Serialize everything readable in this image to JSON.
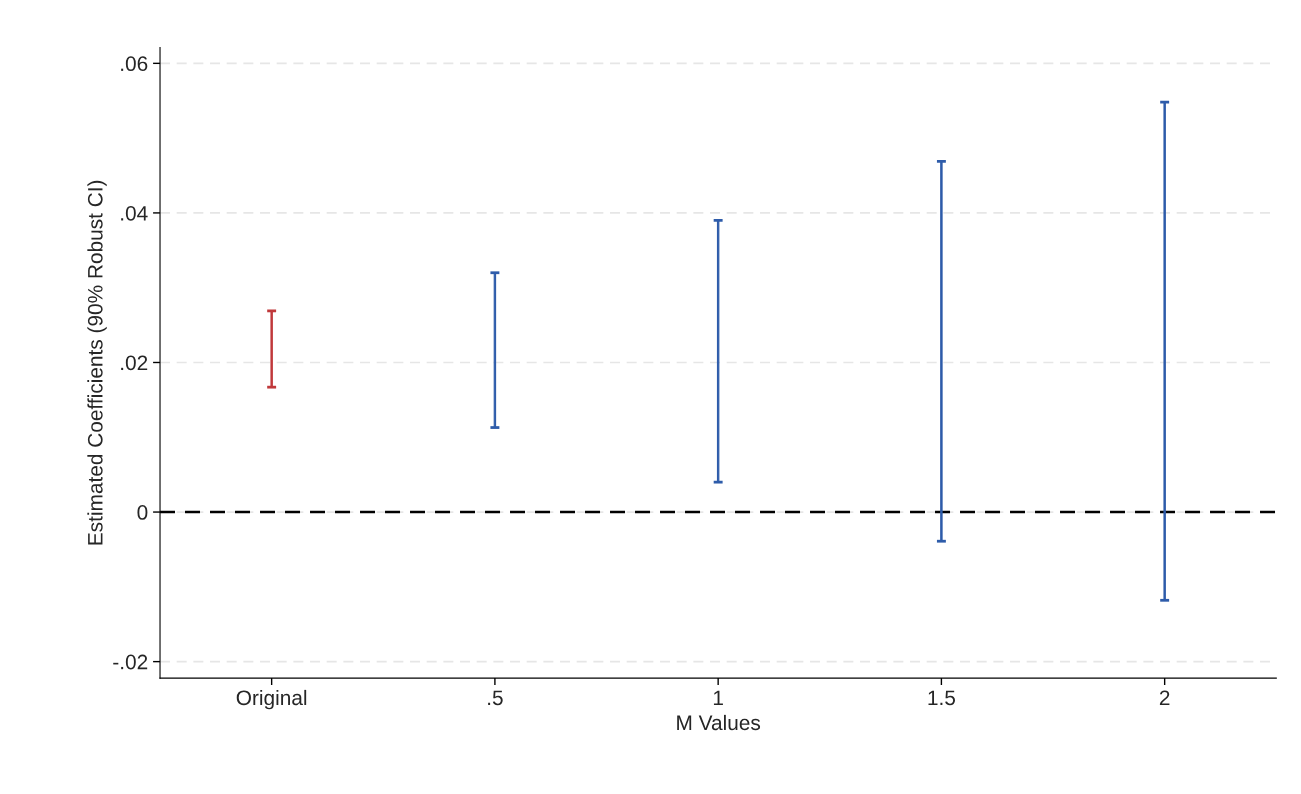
{
  "chart_data": {
    "type": "bar",
    "xlabel": "M Values",
    "ylabel": "Estimated Coefficients (90% Robust CI)",
    "categories": [
      "Original",
      ".5",
      "1",
      "1.5",
      "2"
    ],
    "base": [
      0.0167,
      0.0113,
      0.004,
      -0.0039,
      -0.0118
    ],
    "values": [
      0.0102,
      0.0207,
      0.035,
      0.0508,
      0.0666
    ],
    "colors": [
      "#c0393b",
      "#2e5caa",
      "#2e5caa",
      "#2e5caa",
      "#2e5caa"
    ],
    "ylim": [
      -0.0222,
      0.0621
    ],
    "yticks": [
      {
        "value": -0.02,
        "label": "-.02"
      },
      {
        "value": 0,
        "label": "0"
      },
      {
        "value": 0.02,
        "label": ".02"
      },
      {
        "value": 0.04,
        "label": ".04"
      },
      {
        "value": 0.06,
        "label": ".06"
      }
    ],
    "grid": "y",
    "ref_lines": [
      {
        "axis": "y",
        "value": 0,
        "color": "#000000",
        "line_style": "dashed"
      }
    ]
  }
}
